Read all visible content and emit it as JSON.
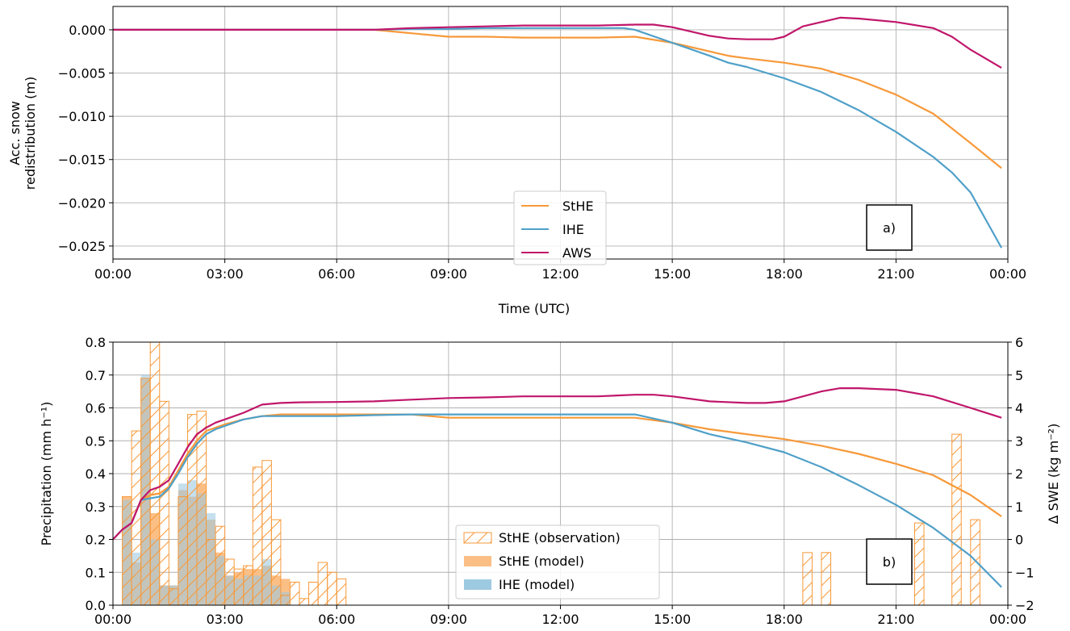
{
  "chart_data": [
    {
      "panel": "a)",
      "type": "line",
      "xlabel": "Time (UTC)",
      "ylabel_line1": "Acc. snow",
      "ylabel_line2": "redistribution (m)",
      "xlim": [
        0,
        24
      ],
      "ylim": [
        -0.0265,
        0.0027
      ],
      "x_tick_values": [
        0,
        3,
        6,
        9,
        12,
        15,
        18,
        21,
        24
      ],
      "x_tick_labels": [
        "00:00",
        "03:00",
        "06:00",
        "09:00",
        "12:00",
        "15:00",
        "18:00",
        "21:00",
        "00:00"
      ],
      "y_tick_values": [
        0.0,
        -0.005,
        -0.01,
        -0.015,
        -0.02,
        -0.025
      ],
      "y_tick_labels": [
        "0.000",
        "−0.005",
        "−0.010",
        "−0.015",
        "−0.020",
        "−0.025"
      ],
      "grid": true,
      "legend_position": "lower-center",
      "series": [
        {
          "name": "StHE",
          "color": "#f7993a",
          "x": [
            0,
            6,
            7,
            8,
            9,
            10,
            11,
            12,
            13,
            14,
            15,
            16,
            16.5,
            17,
            18,
            19,
            20,
            21,
            22,
            23,
            23.83
          ],
          "y": [
            0,
            0,
            0,
            -0.0004,
            -0.0008,
            -0.0008,
            -0.0009,
            -0.0009,
            -0.0009,
            -0.0008,
            -0.0015,
            -0.0025,
            -0.003,
            -0.0033,
            -0.0038,
            -0.0045,
            -0.0058,
            -0.0075,
            -0.0097,
            -0.0131,
            -0.016
          ]
        },
        {
          "name": "IHE",
          "color": "#4fa0c8",
          "x": [
            0,
            7,
            8,
            9,
            10,
            11,
            12,
            13,
            13.7,
            14,
            15,
            16,
            16.5,
            17,
            18,
            19,
            20,
            21,
            22,
            22.5,
            23,
            23.83
          ],
          "y": [
            0,
            0,
            0.0001,
            0.0001,
            0.0002,
            0.0002,
            0.0002,
            0.0002,
            0.0002,
            0.0,
            -0.0015,
            -0.003,
            -0.0038,
            -0.0043,
            -0.0056,
            -0.0072,
            -0.0093,
            -0.0118,
            -0.0147,
            -0.0165,
            -0.0188,
            -0.0252
          ]
        },
        {
          "name": "AWS",
          "color": "#c0166a",
          "x": [
            0,
            7,
            8,
            9,
            10,
            11,
            12,
            13,
            14,
            14.5,
            15,
            16,
            16.5,
            17,
            17.7,
            18,
            18.5,
            19,
            19.5,
            20,
            21,
            22,
            22.5,
            23,
            23.83
          ],
          "y": [
            0,
            0,
            0.0002,
            0.0003,
            0.0004,
            0.0005,
            0.0005,
            0.0005,
            0.0006,
            0.0006,
            0.0003,
            -0.0007,
            -0.001,
            -0.0011,
            -0.0011,
            -0.0008,
            0.0004,
            0.0009,
            0.0014,
            0.0013,
            0.0009,
            0.0002,
            -0.0008,
            -0.0023,
            -0.0044
          ]
        }
      ]
    },
    {
      "panel": "b)",
      "type": "bar+line",
      "ylabel": "Precipitation (mm h⁻¹)",
      "ylabel_right": "Δ SWE (kg m⁻²)",
      "xlim": [
        0,
        24
      ],
      "ylim": [
        0,
        0.8
      ],
      "ylim_right": [
        -2,
        6
      ],
      "bar_width_hours": 0.25,
      "x_tick_values": [
        0,
        3,
        6,
        9,
        12,
        15,
        18,
        21,
        24
      ],
      "x_tick_labels": [
        "00:00",
        "03:00",
        "06:00",
        "09:00",
        "12:00",
        "15:00",
        "18:00",
        "21:00",
        "00:00"
      ],
      "y_tick_values": [
        0.0,
        0.1,
        0.2,
        0.3,
        0.4,
        0.5,
        0.6,
        0.7,
        0.8
      ],
      "y_tick_labels": [
        "0.0",
        "0.1",
        "0.2",
        "0.3",
        "0.4",
        "0.5",
        "0.6",
        "0.7",
        "0.8"
      ],
      "y_right_tick_values": [
        -2,
        -1,
        0,
        1,
        2,
        3,
        4,
        5,
        6
      ],
      "y_right_tick_labels": [
        "−2",
        "−1",
        "0",
        "1",
        "2",
        "3",
        "4",
        "5",
        "6"
      ],
      "grid": true,
      "legend_position": "lower-center",
      "bar_series": [
        {
          "name": "StHE (observation)",
          "style": "hatched-outline",
          "color": "#f7993a",
          "x": [
            0.0,
            0.25,
            0.5,
            0.75,
            1.0,
            1.25,
            1.5,
            1.75,
            2.0,
            2.25,
            2.5,
            2.75,
            3.0,
            3.25,
            3.5,
            3.75,
            4.0,
            4.25,
            4.5,
            4.75,
            5.0,
            5.25,
            5.5,
            5.75,
            6.0,
            18.5,
            19.0,
            21.5,
            22.5,
            23.0
          ],
          "values": [
            0.0,
            0.33,
            0.53,
            0.69,
            0.8,
            0.62,
            0.05,
            0.33,
            0.58,
            0.59,
            0.2,
            0.24,
            0.14,
            0.11,
            0.12,
            0.42,
            0.44,
            0.26,
            0.03,
            0.07,
            0.02,
            0.07,
            0.13,
            0.1,
            0.08,
            0.16,
            0.16,
            0.25,
            0.52,
            0.26
          ]
        },
        {
          "name": "StHE (model)",
          "style": "filled",
          "color": "#fbbf86",
          "x": [
            0.25,
            0.5,
            0.75,
            1.0,
            1.25,
            1.5,
            1.75,
            2.0,
            2.25,
            2.5,
            2.75,
            3.0,
            3.25,
            3.5,
            3.75,
            4.0,
            4.25,
            4.5
          ],
          "values": [
            0.33,
            0.13,
            0.69,
            0.28,
            0.06,
            0.06,
            0.35,
            0.33,
            0.37,
            0.26,
            0.16,
            0.09,
            0.1,
            0.11,
            0.11,
            0.12,
            0.09,
            0.08
          ]
        },
        {
          "name": "IHE (model)",
          "style": "filled",
          "color": "#9ecae1",
          "x": [
            0.25,
            0.5,
            0.75,
            1.0,
            1.25,
            1.5,
            1.75,
            2.0,
            2.25,
            2.5,
            2.75,
            3.0,
            3.25,
            3.5,
            3.75,
            4.0,
            4.25,
            4.5
          ],
          "values": [
            0.32,
            0.16,
            0.7,
            0.2,
            0.06,
            0.06,
            0.37,
            0.38,
            0.34,
            0.28,
            0.15,
            0.09,
            0.08,
            0.09,
            0.09,
            0.14,
            0.06,
            0.04
          ]
        }
      ],
      "line_series": [
        {
          "name": "StHE",
          "color": "#f7993a",
          "x": [
            0,
            0.25,
            0.5,
            0.75,
            1.0,
            1.25,
            1.5,
            1.75,
            2.0,
            2.25,
            2.5,
            2.75,
            3.0,
            3.5,
            4.0,
            4.5,
            5.0,
            6.0,
            7.0,
            8.0,
            9.0,
            10.0,
            12.0,
            13.0,
            14.0,
            15.0,
            16.0,
            17.0,
            18.0,
            19.0,
            20.0,
            21.0,
            22.0,
            23.0,
            23.83
          ],
          "y": [
            0,
            0.3,
            0.5,
            1.2,
            1.35,
            1.4,
            1.6,
            2.1,
            2.6,
            3.0,
            3.3,
            3.4,
            3.5,
            3.65,
            3.75,
            3.8,
            3.8,
            3.8,
            3.8,
            3.8,
            3.7,
            3.7,
            3.7,
            3.7,
            3.7,
            3.55,
            3.35,
            3.2,
            3.05,
            2.85,
            2.6,
            2.3,
            1.95,
            1.35,
            0.7
          ]
        },
        {
          "name": "IHE",
          "color": "#4fa0c8",
          "x": [
            0,
            0.25,
            0.5,
            0.75,
            1.0,
            1.25,
            1.5,
            1.75,
            2.0,
            2.25,
            2.5,
            2.75,
            3.0,
            3.5,
            4.0,
            4.5,
            5.0,
            6.0,
            7.0,
            8.0,
            9.0,
            10.0,
            12.0,
            13.0,
            14.0,
            15.0,
            16.0,
            17.0,
            18.0,
            19.0,
            20.0,
            21.0,
            22.0,
            23.0,
            23.83
          ],
          "y": [
            0,
            0.3,
            0.5,
            1.2,
            1.25,
            1.3,
            1.55,
            2.0,
            2.5,
            2.9,
            3.2,
            3.35,
            3.45,
            3.65,
            3.75,
            3.75,
            3.75,
            3.75,
            3.78,
            3.8,
            3.8,
            3.8,
            3.8,
            3.8,
            3.8,
            3.55,
            3.2,
            2.95,
            2.65,
            2.2,
            1.65,
            1.05,
            0.35,
            -0.5,
            -1.45
          ]
        },
        {
          "name": "AWS",
          "color": "#c0166a",
          "x": [
            0,
            0.25,
            0.5,
            0.75,
            1.0,
            1.25,
            1.5,
            1.75,
            2.0,
            2.25,
            2.5,
            2.75,
            3.0,
            3.5,
            4.0,
            4.5,
            5.0,
            6.0,
            7.0,
            8.0,
            9.0,
            10.0,
            11.0,
            12.0,
            13.0,
            14.0,
            14.5,
            15.0,
            16.0,
            17.0,
            17.5,
            18.0,
            19.0,
            19.5,
            20.0,
            21.0,
            22.0,
            23.0,
            23.83
          ],
          "y": [
            0,
            0.3,
            0.5,
            1.2,
            1.5,
            1.6,
            1.8,
            2.3,
            2.8,
            3.2,
            3.4,
            3.55,
            3.65,
            3.85,
            4.1,
            4.15,
            4.17,
            4.18,
            4.2,
            4.25,
            4.3,
            4.32,
            4.35,
            4.35,
            4.35,
            4.4,
            4.4,
            4.35,
            4.2,
            4.15,
            4.15,
            4.2,
            4.5,
            4.6,
            4.6,
            4.55,
            4.35,
            4.0,
            3.7
          ]
        }
      ]
    }
  ],
  "legend_b": {
    "obs": "StHE (observation)",
    "sthe_model": "StHE (model)",
    "ihe_model": "IHE (model)"
  }
}
